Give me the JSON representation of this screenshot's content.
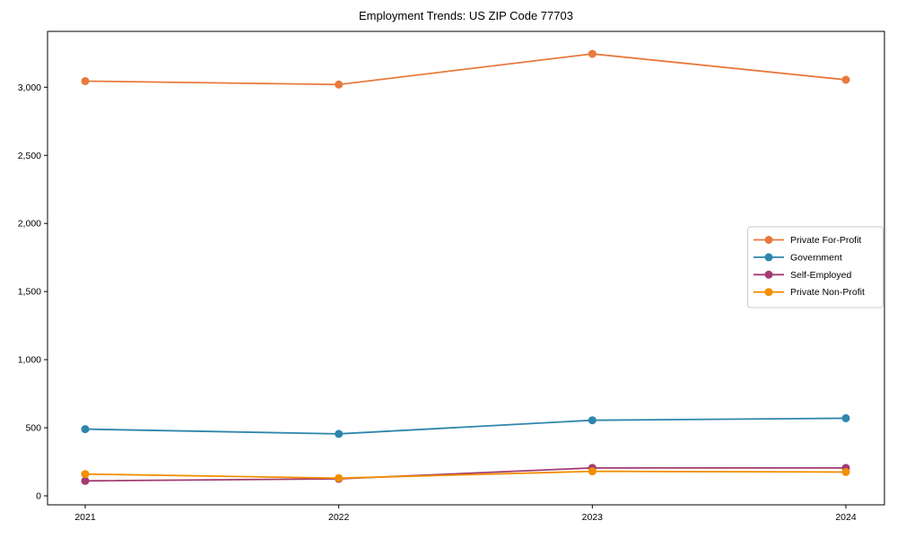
{
  "title": "Employment Trends: US ZIP Code 77703",
  "chart_data": {
    "type": "line",
    "title": "Employment Trends: US ZIP Code 77703",
    "categories": [
      "2021",
      "2022",
      "2023",
      "2024"
    ],
    "series": [
      {
        "name": "Private For-Profit",
        "color": "#E8793D",
        "values": [
          3045,
          3020,
          3245,
          3055
        ]
      },
      {
        "name": "Government",
        "color": "#2E86AB",
        "values": [
          490,
          455,
          555,
          570
        ]
      },
      {
        "name": "Self-Employed",
        "color": "#A23B72",
        "values": [
          110,
          125,
          205,
          205
        ]
      },
      {
        "name": "Private Non-Profit",
        "color": "#F18F01",
        "values": [
          160,
          130,
          180,
          175
        ]
      }
    ],
    "xlabel": "",
    "ylabel": "",
    "ylim": [
      -66,
      3410
    ],
    "yticks": {
      "values": [
        0,
        500,
        1000,
        1500,
        2000,
        2500,
        3000
      ],
      "labels": [
        "0",
        "500",
        "1,000",
        "1,500",
        "2,000",
        "2,500",
        "3,000"
      ]
    },
    "grid": false,
    "legend_position": "right-center",
    "axis_color": "#000000",
    "legend_border_color": "#cccccc",
    "background_color": "#ffffff"
  }
}
